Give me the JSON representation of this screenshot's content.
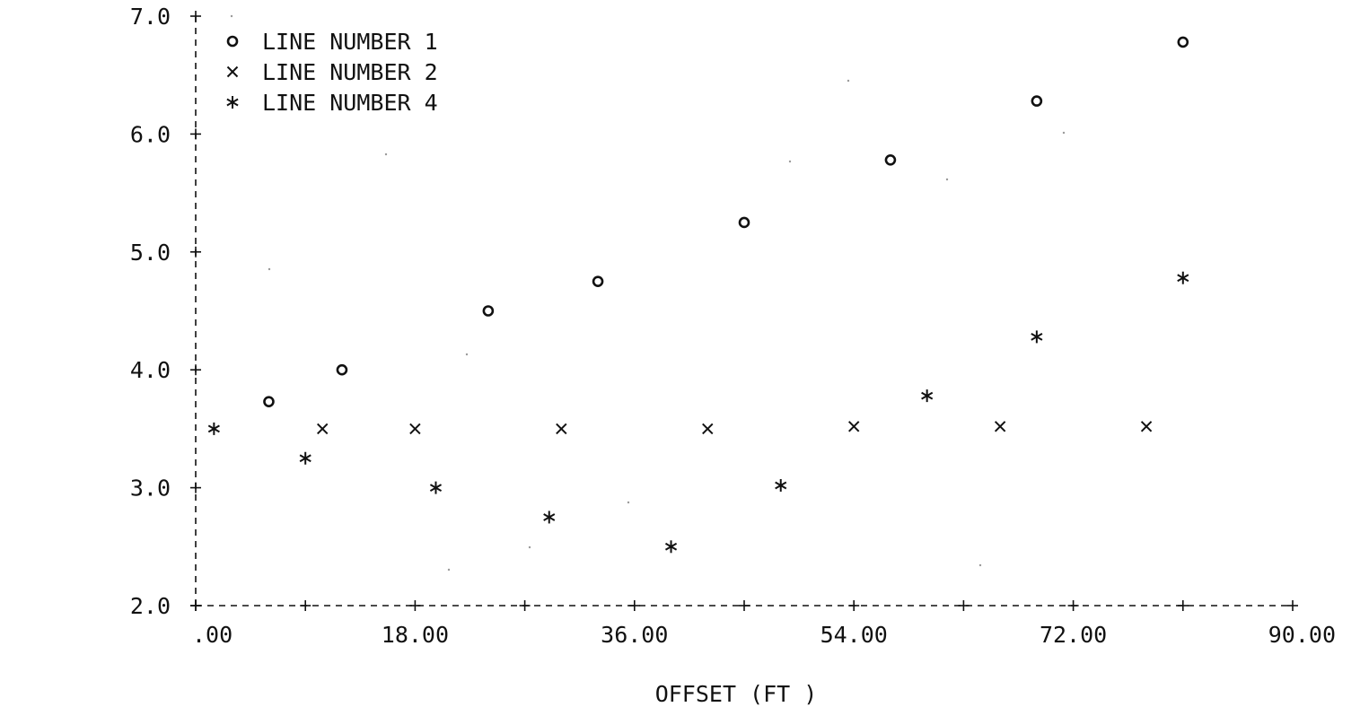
{
  "chart_data": {
    "type": "scatter",
    "xlabel": "OFFSET (FT )",
    "ylabel": "",
    "xlim": [
      0,
      90
    ],
    "ylim": [
      2.0,
      7.0
    ],
    "x_tick_labels": [
      ".00",
      "18.00",
      "36.00",
      "54.00",
      "72.00",
      "90.00"
    ],
    "y_tick_labels": [
      "2.0",
      "3.0",
      "4.0",
      "5.0",
      "6.0",
      "7.0"
    ],
    "grid": false,
    "legend": "top-left",
    "series": [
      {
        "name": "LINE NUMBER  1",
        "marker": "o",
        "x": [
          6,
          12,
          24,
          33,
          45,
          57,
          69,
          81
        ],
        "y": [
          3.73,
          4.0,
          4.5,
          4.75,
          5.25,
          5.78,
          6.28,
          6.78
        ]
      },
      {
        "name": "LINE NUMBER  2",
        "marker": "x",
        "x": [
          10.4,
          18,
          30,
          42,
          54,
          66,
          78
        ],
        "y": [
          3.5,
          3.5,
          3.5,
          3.5,
          3.52,
          3.52,
          3.52
        ]
      },
      {
        "name": "LINE NUMBER  4",
        "marker": "*",
        "x": [
          1.5,
          9,
          19.7,
          29,
          39,
          48,
          60,
          69,
          81
        ],
        "y": [
          3.5,
          3.25,
          3.0,
          2.75,
          2.5,
          3.02,
          3.78,
          4.28,
          4.78
        ]
      }
    ]
  }
}
